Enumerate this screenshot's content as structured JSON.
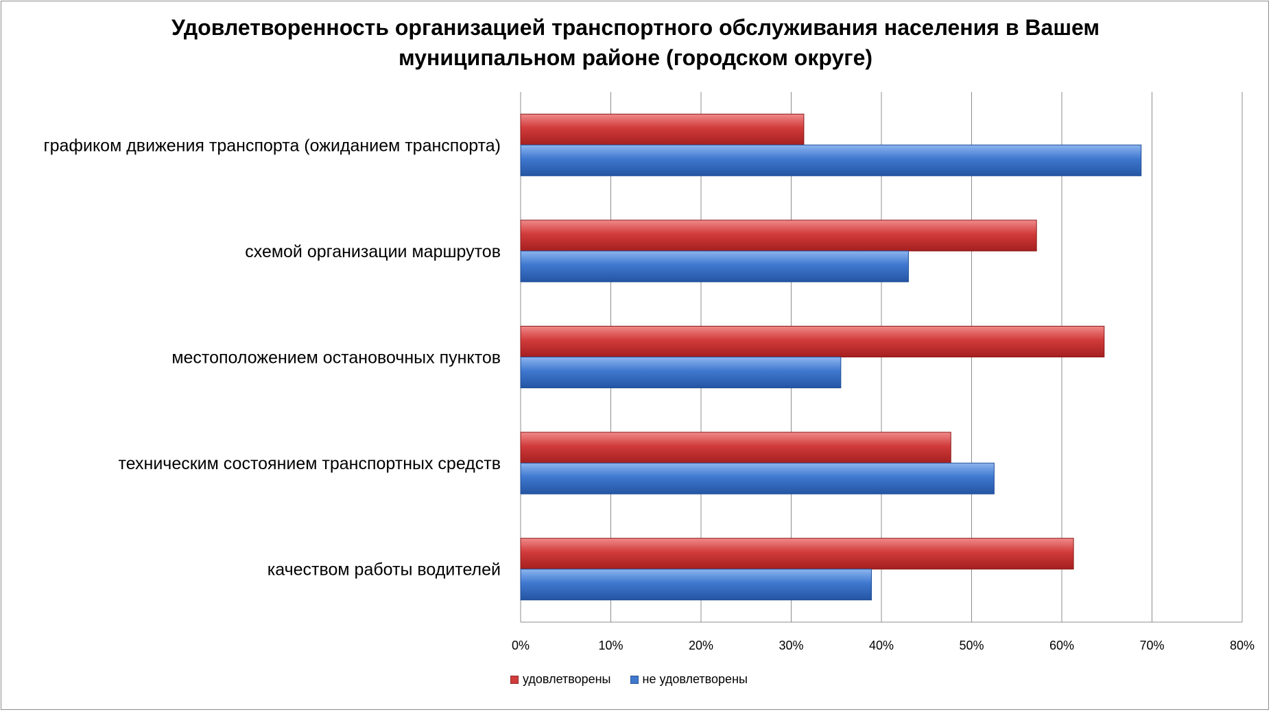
{
  "chart_title": {
    "line1": "Удовлетворенность организацией транспортного обслуживания населения в Вашем",
    "line2": "муниципальном районе (городском округе)"
  },
  "chart_data": {
    "type": "bar",
    "orientation": "horizontal",
    "title": "Удовлетворенность организацией транспортного обслуживания населения в Вашем муниципальном районе (городском округе)",
    "categories": [
      "графиком движения транспорта (ожиданием транспорта)",
      "схемой организации маршрутов",
      "местоположением остановочных пунктов",
      "техническим состоянием транспортных средств",
      "качеством работы водителей"
    ],
    "series": [
      {
        "name": "удовлетворены",
        "color": "#d13b3b",
        "values": [
          31.4,
          57.2,
          64.7,
          47.7,
          61.3
        ]
      },
      {
        "name": "не удовлетворены",
        "color": "#3f78cf",
        "values": [
          68.8,
          43.0,
          35.5,
          52.5,
          38.9
        ]
      }
    ],
    "xlim": [
      0,
      80
    ],
    "x_ticks": [
      "0%",
      "10%",
      "20%",
      "30%",
      "40%",
      "50%",
      "60%",
      "70%",
      "80%"
    ],
    "grid": "vertical",
    "legend_position": "bottom"
  },
  "legend": {
    "items": [
      {
        "label": "удовлетворены",
        "color": "#d13b3b"
      },
      {
        "label": "не удовлетворены",
        "color": "#3f78cf"
      }
    ]
  }
}
